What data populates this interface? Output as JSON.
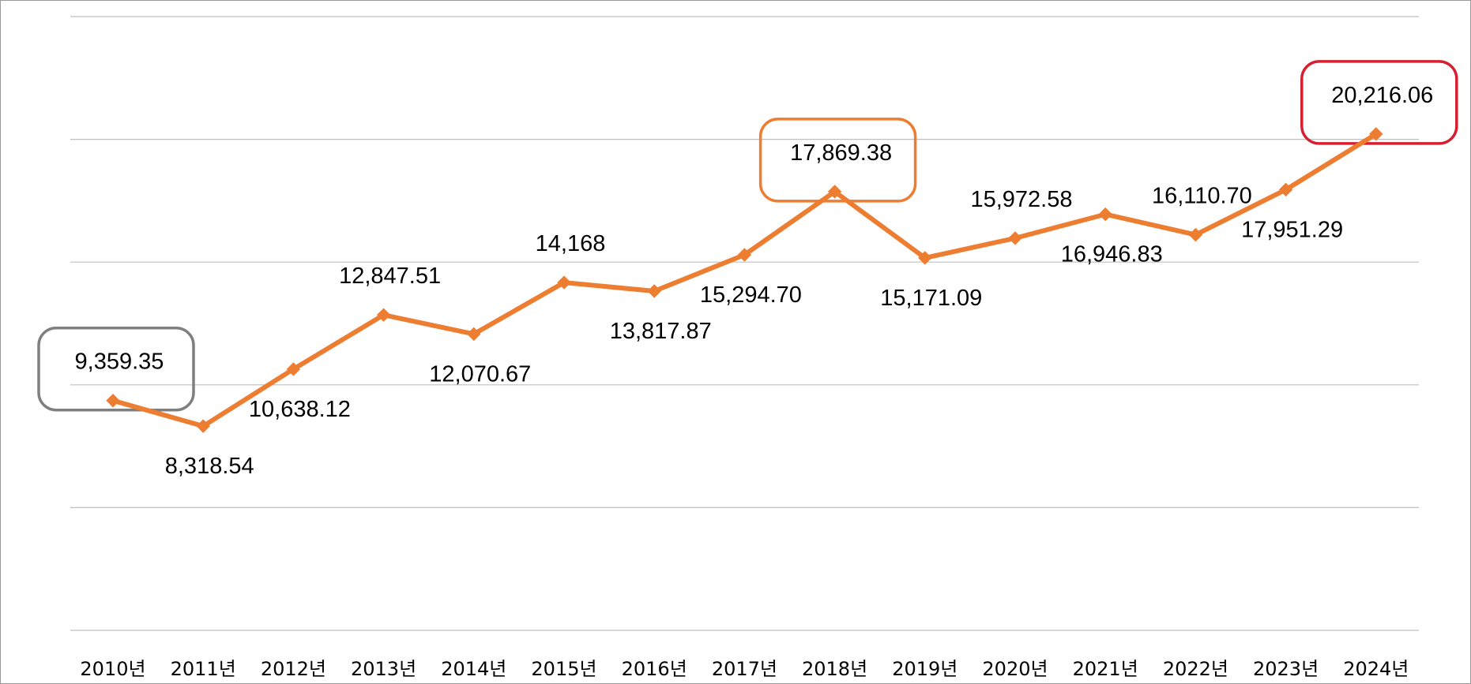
{
  "chart_data": {
    "type": "line",
    "title": "",
    "xlabel": "",
    "ylabel": "",
    "categories": [
      "2010년",
      "2011년",
      "2012년",
      "2013년",
      "2014년",
      "2015년",
      "2016년",
      "2017년",
      "2018년",
      "2019년",
      "2020년",
      "2021년",
      "2022년",
      "2023년",
      "2024년"
    ],
    "values": [
      9359.35,
      8318.54,
      10638.12,
      12847.51,
      12070.67,
      14168,
      13817.87,
      15294.7,
      17869.38,
      15171.09,
      15972.58,
      16946.83,
      16110.7,
      17951.29,
      20216.06
    ],
    "labels": [
      "9,359.35",
      "8,318.54",
      "10,638.12",
      "12,847.51",
      "12,070.67",
      "14,168",
      "13,817.87",
      "15,294.70",
      "17,869.38",
      "15,171.09",
      "15,972.58",
      "16,946.83",
      "16,110.70",
      "17,951.29",
      "20,216.06"
    ],
    "label_positions": [
      "above",
      "below",
      "below",
      "above",
      "below",
      "above",
      "below",
      "below",
      "above",
      "below",
      "above",
      "below",
      "above",
      "below",
      "above"
    ],
    "ylim": [
      0,
      25000
    ],
    "grid": true,
    "legend": "none",
    "highlights": [
      {
        "index": 0,
        "color": "#7f7f7f"
      },
      {
        "index": 8,
        "color": "#ed7d31"
      },
      {
        "index": 14,
        "color": "#d6202f"
      }
    ],
    "colors": {
      "line": "#ed7d31",
      "grid": "#bfbfbf"
    }
  }
}
